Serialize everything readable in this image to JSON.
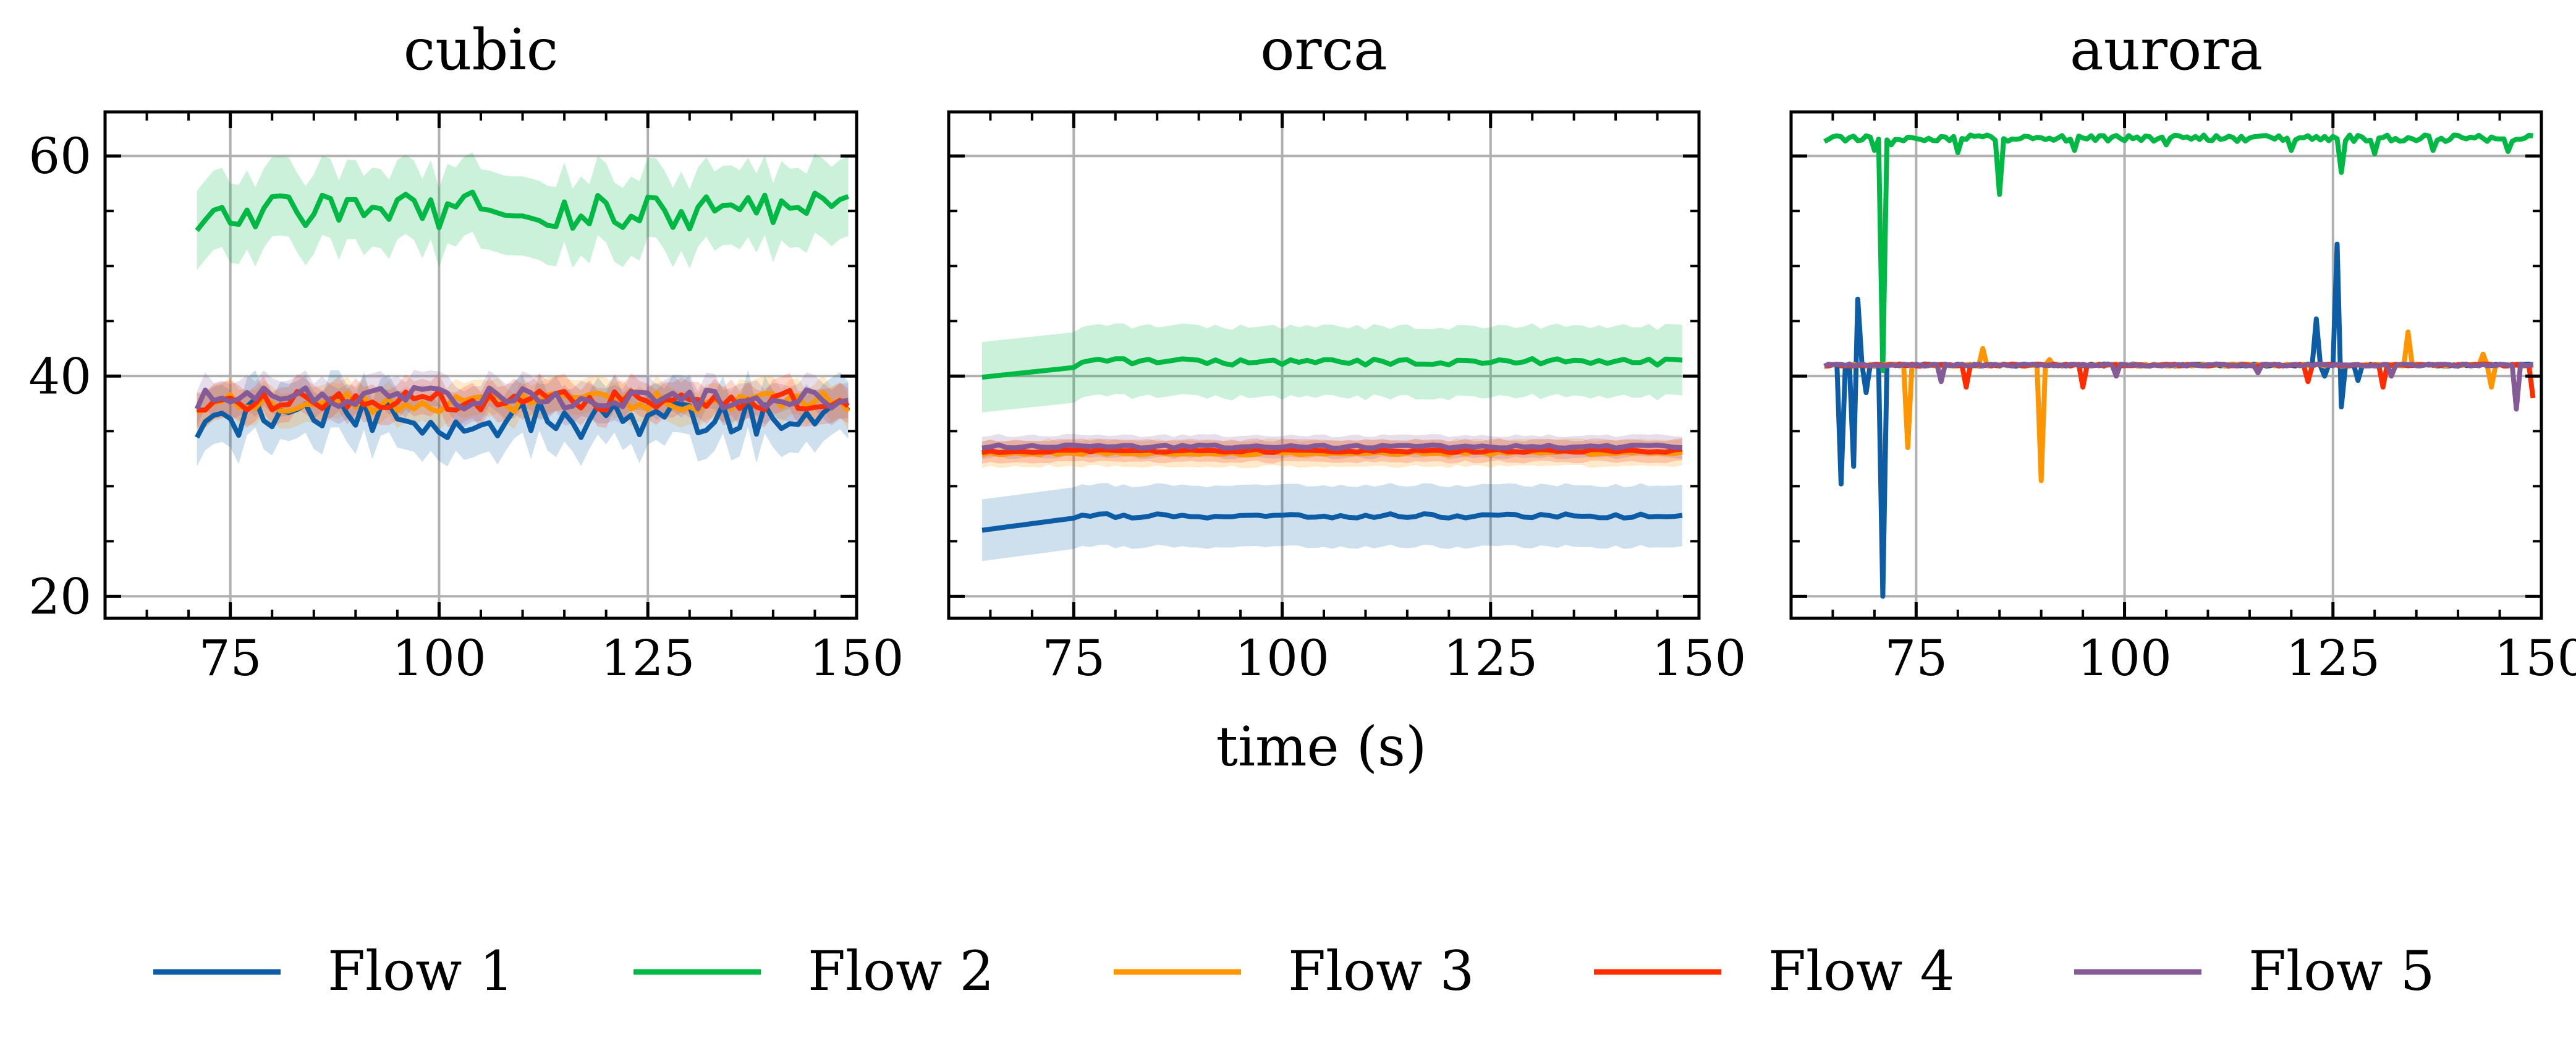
{
  "figure": {
    "xlabel": "time (s)",
    "legend": {
      "placement": "bottom",
      "entries": [
        {
          "name": "Flow 1",
          "color": "#0c5da5"
        },
        {
          "name": "Flow 2",
          "color": "#00b945"
        },
        {
          "name": "Flow 3",
          "color": "#ff9500"
        },
        {
          "name": "Flow 4",
          "color": "#ff2c00"
        },
        {
          "name": "Flow 5",
          "color": "#845b97"
        }
      ]
    }
  },
  "chart_data": [
    {
      "type": "line",
      "title": "cubic",
      "xlim": [
        60,
        150
      ],
      "ylim": [
        18,
        64
      ],
      "xticks": [
        75,
        100,
        125,
        150
      ],
      "yticks": [
        20,
        40,
        60
      ],
      "grid": true,
      "x_start": 71,
      "x_end": 149,
      "x_step": 1,
      "series": [
        {
          "name": "Flow 1",
          "color": "#0c5da5",
          "base": 36.2,
          "jitter": 1.8,
          "band": 2.6,
          "values": []
        },
        {
          "name": "Flow 2",
          "color": "#00b945",
          "base": 55.0,
          "jitter": 1.8,
          "band": 3.6,
          "values": []
        },
        {
          "name": "Flow 3",
          "color": "#ff9500",
          "base": 37.6,
          "jitter": 0.9,
          "band": 1.6,
          "values": []
        },
        {
          "name": "Flow 4",
          "color": "#ff2c00",
          "base": 37.8,
          "jitter": 0.9,
          "band": 1.6,
          "values": []
        },
        {
          "name": "Flow 5",
          "color": "#845b97",
          "base": 38.0,
          "jitter": 1.0,
          "band": 1.6,
          "values": []
        }
      ]
    },
    {
      "type": "line",
      "title": "orca",
      "xlim": [
        60,
        150
      ],
      "ylim": [
        18,
        64
      ],
      "xticks": [
        75,
        100,
        125,
        150
      ],
      "yticks": [
        20,
        40,
        60
      ],
      "grid": true,
      "x_start": 64,
      "x_end": 148,
      "x_step": 1,
      "series": [
        {
          "name": "Flow 1",
          "color": "#0c5da5",
          "base": 27.3,
          "jitter": 0.2,
          "band": 2.8,
          "values": []
        },
        {
          "name": "Flow 2",
          "color": "#00b945",
          "base": 41.3,
          "jitter": 0.3,
          "band": 3.2,
          "values": []
        },
        {
          "name": "Flow 3",
          "color": "#ff9500",
          "base": 33.0,
          "jitter": 0.15,
          "band": 1.2,
          "values": []
        },
        {
          "name": "Flow 4",
          "color": "#ff2c00",
          "base": 33.2,
          "jitter": 0.15,
          "band": 1.0,
          "values": []
        },
        {
          "name": "Flow 5",
          "color": "#845b97",
          "base": 33.6,
          "jitter": 0.15,
          "band": 1.0,
          "values": []
        }
      ]
    },
    {
      "type": "line",
      "title": "aurora",
      "xlim": [
        60,
        150
      ],
      "ylim": [
        18,
        64
      ],
      "xticks": [
        75,
        100,
        125,
        150
      ],
      "yticks": [
        20,
        40,
        60
      ],
      "grid": true,
      "x_start": 64,
      "x_end": 149,
      "x_step": 0.5,
      "series": [
        {
          "name": "Flow 1",
          "color": "#0c5da5",
          "base": 41.0,
          "jitter": 0.1,
          "band": 0,
          "spikes": [
            [
              66,
              30.2
            ],
            [
              67.5,
              31.8
            ],
            [
              68,
              47.0
            ],
            [
              69,
              38.5
            ],
            [
              71,
              20.0
            ],
            [
              123,
              45.2
            ],
            [
              124,
              40.0
            ],
            [
              125.5,
              52.0
            ],
            [
              126,
              37.2
            ],
            [
              128,
              39.6
            ]
          ],
          "values": []
        },
        {
          "name": "Flow 2",
          "color": "#00b945",
          "base": 61.6,
          "jitter": 0.3,
          "band": 0,
          "spikes": [
            [
              70,
              60.5
            ],
            [
              71,
              40.5
            ],
            [
              72,
              61.0
            ],
            [
              80,
              60.3
            ],
            [
              85,
              56.5
            ],
            [
              94,
              60.5
            ],
            [
              105,
              61.0
            ],
            [
              120,
              60.5
            ],
            [
              126,
              58.5
            ],
            [
              130,
              60.2
            ],
            [
              137,
              60.5
            ],
            [
              146,
              60.4
            ]
          ],
          "values": []
        },
        {
          "name": "Flow 3",
          "color": "#ff9500",
          "base": 41.0,
          "jitter": 0.1,
          "band": 0,
          "spikes": [
            [
              74,
              33.5
            ],
            [
              83,
              42.5
            ],
            [
              90,
              30.5
            ],
            [
              91,
              41.5
            ],
            [
              134,
              44.0
            ],
            [
              143,
              42.0
            ],
            [
              144,
              39.0
            ]
          ],
          "values": []
        },
        {
          "name": "Flow 4",
          "color": "#ff2c00",
          "base": 41.0,
          "jitter": 0.1,
          "band": 0,
          "spikes": [
            [
              81,
              39.0
            ],
            [
              95,
              39.0
            ],
            [
              122,
              39.5
            ],
            [
              131,
              39.0
            ],
            [
              149,
              38.0
            ]
          ],
          "values": []
        },
        {
          "name": "Flow 5",
          "color": "#845b97",
          "base": 41.0,
          "jitter": 0.1,
          "band": 0,
          "spikes": [
            [
              78,
              39.5
            ],
            [
              99,
              40.0
            ],
            [
              116,
              40.3
            ],
            [
              132,
              40.0
            ],
            [
              147,
              37.0
            ]
          ],
          "values": []
        }
      ]
    }
  ]
}
